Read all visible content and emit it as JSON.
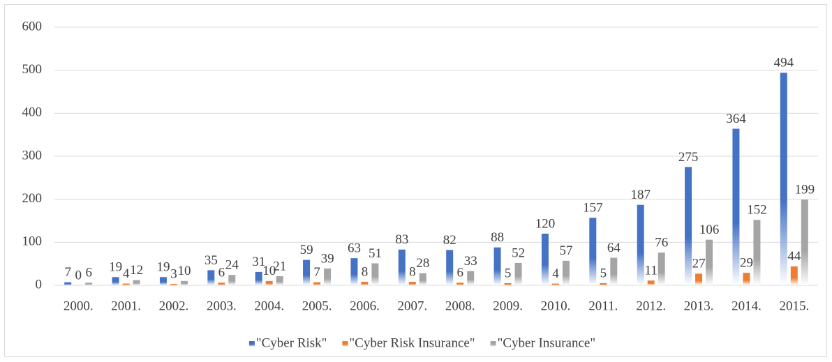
{
  "chart_data": {
    "type": "bar",
    "categories": [
      "2000.",
      "2001.",
      "2002.",
      "2003.",
      "2004.",
      "2005.",
      "2006.",
      "2007.",
      "2008.",
      "2009.",
      "2010.",
      "2011.",
      "2012.",
      "2013.",
      "2014.",
      "2015."
    ],
    "series": [
      {
        "name": "\"Cyber Risk\"",
        "color": "#4472c4",
        "values": [
          7,
          19,
          19,
          35,
          31,
          59,
          63,
          83,
          82,
          88,
          120,
          157,
          187,
          275,
          364,
          494
        ]
      },
      {
        "name": "\"Cyber Risk Insurance\"",
        "color": "#ed7d31",
        "values": [
          0,
          4,
          3,
          6,
          10,
          7,
          8,
          8,
          6,
          5,
          4,
          5,
          11,
          27,
          29,
          44
        ]
      },
      {
        "name": "\"Cyber Insurance\"",
        "color": "#a5a5a5",
        "values": [
          6,
          12,
          10,
          24,
          21,
          39,
          51,
          28,
          33,
          52,
          57,
          64,
          76,
          106,
          152,
          199
        ]
      }
    ],
    "ylim": [
      0,
      600
    ],
    "yticks": [
      0,
      100,
      200,
      300,
      400,
      500,
      600
    ],
    "grid": true,
    "legend": "bottom"
  }
}
